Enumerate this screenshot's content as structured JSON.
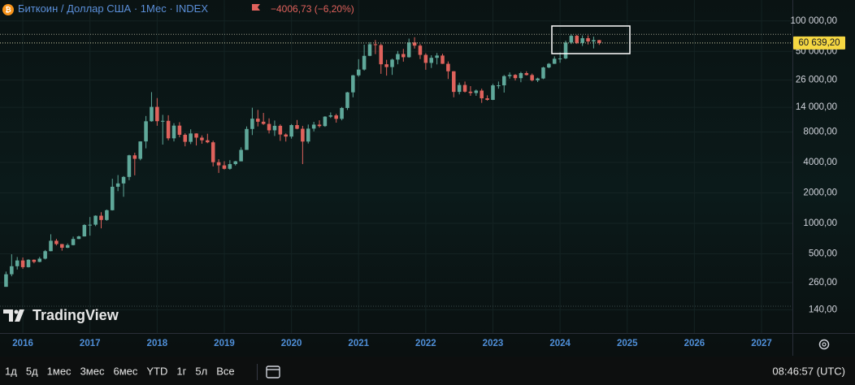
{
  "chart_data": {
    "type": "candlestick",
    "symbol": "Биткоин / Доллар США",
    "interval": "1Мес",
    "exchange": "INDEX",
    "log_scale": true,
    "grid": true,
    "up_color": "#5fa89a",
    "down_color": "#e0625c",
    "ylim": [
      82.5,
      161000
    ],
    "yticks": [
      {
        "value": 140,
        "label": "140,00"
      },
      {
        "value": 260,
        "label": "260,00"
      },
      {
        "value": 500,
        "label": "500,00"
      },
      {
        "value": 1000,
        "label": "1000,00"
      },
      {
        "value": 2000,
        "label": "2000,00"
      },
      {
        "value": 4000,
        "label": "4000,00"
      },
      {
        "value": 8000,
        "label": "8000,00"
      },
      {
        "value": 14000,
        "label": "14 000,00"
      },
      {
        "value": 26000,
        "label": "26 000,00"
      },
      {
        "value": 50000,
        "label": "50 000,00"
      },
      {
        "value": 100000,
        "label": "100 000,00"
      }
    ],
    "xlim": [
      2015.66,
      2027.46
    ],
    "xticks": [
      2016,
      2017,
      2018,
      2019,
      2020,
      2021,
      2022,
      2023,
      2024,
      2025,
      2026,
      2027
    ],
    "x": [
      "2015-10",
      "2015-11",
      "2015-12",
      "2016-01",
      "2016-02",
      "2016-03",
      "2016-04",
      "2016-05",
      "2016-06",
      "2016-07",
      "2016-08",
      "2016-09",
      "2016-10",
      "2016-11",
      "2016-12",
      "2017-01",
      "2017-02",
      "2017-03",
      "2017-04",
      "2017-05",
      "2017-06",
      "2017-07",
      "2017-08",
      "2017-09",
      "2017-10",
      "2017-11",
      "2017-12",
      "2018-01",
      "2018-02",
      "2018-03",
      "2018-04",
      "2018-05",
      "2018-06",
      "2018-07",
      "2018-08",
      "2018-09",
      "2018-10",
      "2018-11",
      "2018-12",
      "2019-01",
      "2019-02",
      "2019-03",
      "2019-04",
      "2019-05",
      "2019-06",
      "2019-07",
      "2019-08",
      "2019-09",
      "2019-10",
      "2019-11",
      "2019-12",
      "2020-01",
      "2020-02",
      "2020-03",
      "2020-04",
      "2020-05",
      "2020-06",
      "2020-07",
      "2020-08",
      "2020-09",
      "2020-10",
      "2020-11",
      "2020-12",
      "2021-01",
      "2021-02",
      "2021-03",
      "2021-04",
      "2021-05",
      "2021-06",
      "2021-07",
      "2021-08",
      "2021-09",
      "2021-10",
      "2021-11",
      "2021-12",
      "2022-01",
      "2022-02",
      "2022-03",
      "2022-04",
      "2022-05",
      "2022-06",
      "2022-07",
      "2022-08",
      "2022-09",
      "2022-10",
      "2022-11",
      "2022-12",
      "2023-01",
      "2023-02",
      "2023-03",
      "2023-04",
      "2023-05",
      "2023-06",
      "2023-07",
      "2023-08",
      "2023-09",
      "2023-10",
      "2023-11",
      "2023-12",
      "2024-01",
      "2024-02",
      "2024-03",
      "2024-04",
      "2024-05",
      "2024-06",
      "2024-07",
      "2024-08"
    ],
    "open": [
      236,
      314,
      377,
      430,
      369,
      437,
      416,
      448,
      531,
      673,
      624,
      574,
      610,
      701,
      743,
      964,
      970,
      1190,
      1080,
      1348,
      2300,
      2480,
      2875,
      4700,
      4340,
      6450,
      10200,
      14150,
      10220,
      10300,
      6920,
      9240,
      7500,
      6390,
      7730,
      7030,
      6620,
      6320,
      4020,
      3740,
      3460,
      3850,
      4100,
      5320,
      8560,
      10820,
      10100,
      9600,
      8300,
      9200,
      7550,
      7200,
      9350,
      8600,
      6430,
      8630,
      9450,
      9140,
      11330,
      11660,
      10780,
      13800,
      19700,
      29000,
      33100,
      45200,
      58800,
      57700,
      37300,
      35000,
      41500,
      47100,
      43800,
      61300,
      57000,
      46200,
      38500,
      43200,
      45500,
      37700,
      31800,
      19900,
      23300,
      20000,
      19400,
      20500,
      17200,
      16600,
      23100,
      23100,
      28500,
      29300,
      27200,
      30500,
      29200,
      25900,
      27000,
      34700,
      37700,
      42300,
      42600,
      61200,
      71300,
      60700,
      67500,
      62700,
      64645.93
    ],
    "high": [
      334,
      495,
      465,
      460,
      442,
      440,
      466,
      545,
      780,
      703,
      626,
      633,
      740,
      754,
      980,
      1155,
      1200,
      1290,
      1370,
      2760,
      3000,
      2930,
      4760,
      4980,
      6470,
      11500,
      19800,
      17300,
      11800,
      11700,
      9760,
      9990,
      7760,
      8500,
      7760,
      7400,
      7680,
      6550,
      4300,
      4110,
      4210,
      4140,
      5640,
      9070,
      13880,
      13200,
      12330,
      10900,
      10370,
      9510,
      7740,
      9580,
      10500,
      9190,
      9470,
      10070,
      10430,
      11450,
      12470,
      12070,
      14100,
      19900,
      29300,
      41900,
      58300,
      61700,
      64800,
      59500,
      41300,
      42400,
      50500,
      52900,
      66900,
      69000,
      59100,
      47900,
      45800,
      48200,
      47400,
      39800,
      31900,
      24600,
      25200,
      22700,
      21000,
      21400,
      18400,
      23900,
      25200,
      29200,
      31000,
      29800,
      31400,
      31800,
      30200,
      27500,
      35200,
      38400,
      44700,
      48900,
      63900,
      73800,
      72800,
      71900,
      71900,
      70000,
      65000
    ],
    "low": [
      236,
      300,
      350,
      355,
      366,
      403,
      413,
      440,
      530,
      605,
      537,
      569,
      606,
      699,
      741,
      756,
      939,
      893,
      1060,
      1340,
      2080,
      1830,
      2670,
      2980,
      4200,
      5510,
      10100,
      9200,
      6000,
      6600,
      6450,
      7090,
      5770,
      6070,
      5880,
      6120,
      6200,
      3650,
      3150,
      3400,
      3390,
      3730,
      4100,
      5320,
      7450,
      9070,
      9400,
      7730,
      7300,
      6530,
      6430,
      6870,
      8500,
      3850,
      6150,
      8100,
      8830,
      8980,
      10990,
      9880,
      10420,
      13200,
      17600,
      28100,
      32300,
      44900,
      47000,
      30000,
      28800,
      29300,
      37300,
      39600,
      43300,
      53300,
      42000,
      32900,
      34300,
      37200,
      37600,
      26700,
      17600,
      18800,
      19600,
      18200,
      18200,
      15500,
      16300,
      16500,
      21400,
      19600,
      26900,
      25800,
      24800,
      28900,
      25300,
      24900,
      26600,
      34100,
      37600,
      38600,
      41900,
      59100,
      59200,
      56600,
      58500,
      53500,
      58000
    ],
    "close": [
      314,
      377,
      430,
      369,
      437,
      416,
      448,
      531,
      673,
      624,
      574,
      610,
      701,
      743,
      964,
      970,
      1190,
      1080,
      1348,
      2300,
      2480,
      2875,
      4700,
      4340,
      6450,
      10200,
      14150,
      10220,
      10300,
      6920,
      9240,
      7500,
      6390,
      7730,
      7030,
      6620,
      6320,
      4020,
      3740,
      3460,
      3850,
      4100,
      5320,
      8560,
      10820,
      10100,
      9600,
      8300,
      9200,
      7550,
      7200,
      9350,
      8600,
      6430,
      8630,
      9450,
      9140,
      11330,
      11660,
      10780,
      13800,
      19700,
      29000,
      33100,
      45200,
      58800,
      57700,
      37300,
      35000,
      41500,
      47100,
      43800,
      61300,
      57000,
      46200,
      38500,
      43200,
      45500,
      37700,
      31800,
      19900,
      23300,
      20000,
      19400,
      20500,
      17200,
      16600,
      23100,
      23100,
      28500,
      29300,
      27200,
      30500,
      29200,
      25900,
      27000,
      34700,
      37700,
      42300,
      42600,
      61200,
      71300,
      60700,
      67500,
      62700,
      64645.93,
      60639.2
    ],
    "change_label": "−4006,73 (−6,20%)",
    "last_price_label": "60 639,20"
  },
  "logo": "TradingView",
  "range_buttons": [
    "1д",
    "5д",
    "1мес",
    "3мес",
    "6мес",
    "YTD",
    "1г",
    "5л",
    "Все"
  ],
  "clock": "08:46:57 (UTC)"
}
